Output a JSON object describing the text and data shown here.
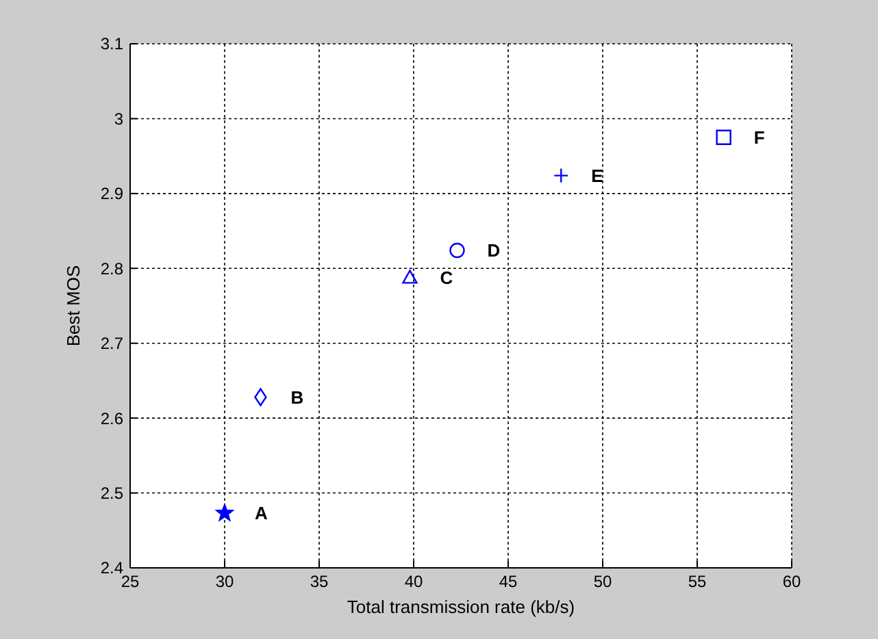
{
  "chart_data": {
    "type": "scatter",
    "xlabel": "Total transmission rate (kb/s)",
    "ylabel": "Best MOS",
    "xlim": [
      25,
      60
    ],
    "xticks": [
      25,
      30,
      35,
      40,
      45,
      50,
      55,
      60
    ],
    "ylim": [
      2.4,
      3.1
    ],
    "yticks": [
      2.4,
      2.5,
      2.6,
      2.7,
      2.8,
      2.9,
      3,
      3.1
    ],
    "grid": true,
    "series": [
      {
        "name": "A",
        "color": "#0000ff",
        "marker": "star",
        "x": [
          30
        ],
        "values": [
          2.473
        ]
      },
      {
        "name": "B",
        "color": "#0000ff",
        "marker": "diamond",
        "x": [
          31.9
        ],
        "values": [
          2.628
        ]
      },
      {
        "name": "C",
        "color": "#0000ff",
        "marker": "triangle",
        "x": [
          39.8
        ],
        "values": [
          2.788
        ]
      },
      {
        "name": "D",
        "color": "#0000ff",
        "marker": "circle",
        "x": [
          42.3
        ],
        "values": [
          2.824
        ]
      },
      {
        "name": "E",
        "color": "#0000ff",
        "marker": "cross",
        "x": [
          47.8
        ],
        "values": [
          2.924
        ]
      },
      {
        "name": "F",
        "color": "#0000ff",
        "marker": "square",
        "x": [
          56.4
        ],
        "values": [
          2.975
        ]
      }
    ]
  }
}
